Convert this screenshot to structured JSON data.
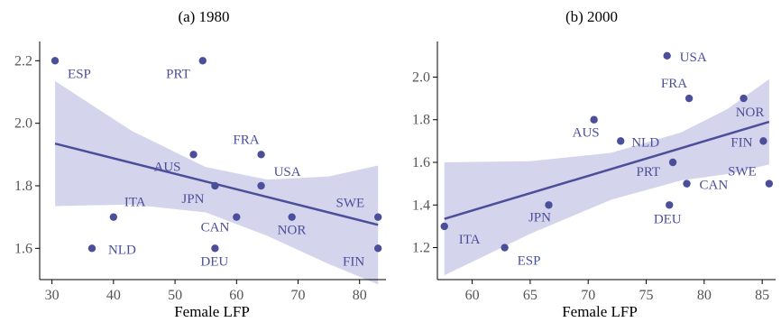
{
  "colors": {
    "point": "#4b4f9a",
    "line": "#4b4f9a",
    "band": "#d4d4ec",
    "label": "#4b4f9a",
    "axis": "#000000",
    "tick_label": "#555555"
  },
  "chart_data": [
    {
      "type": "scatter",
      "title": "(a) 1980",
      "xlabel": "Female LFP",
      "ylabel": "",
      "xlim": [
        28,
        84
      ],
      "ylim": [
        1.5,
        2.25
      ],
      "xticks": [
        30,
        40,
        50,
        60,
        70,
        80
      ],
      "yticks": [
        1.6,
        1.8,
        2.0,
        2.2
      ],
      "ytick_labels": [
        "1.6",
        "1.8",
        "2.0",
        "2.2"
      ],
      "grid": false,
      "points": [
        {
          "label": "ESP",
          "x": 30.5,
          "y": 2.2
        },
        {
          "label": "PRT",
          "x": 54.5,
          "y": 2.2
        },
        {
          "label": "FRA",
          "x": 64.0,
          "y": 1.9
        },
        {
          "label": "AUS",
          "x": 53.0,
          "y": 1.9
        },
        {
          "label": "JPN",
          "x": 56.5,
          "y": 1.8
        },
        {
          "label": "USA",
          "x": 64.0,
          "y": 1.8
        },
        {
          "label": "ITA",
          "x": 40.0,
          "y": 1.7
        },
        {
          "label": "CAN",
          "x": 60.0,
          "y": 1.7
        },
        {
          "label": "NOR",
          "x": 69.0,
          "y": 1.7
        },
        {
          "label": "SWE",
          "x": 83.0,
          "y": 1.7
        },
        {
          "label": "NLD",
          "x": 36.5,
          "y": 1.6
        },
        {
          "label": "DEU",
          "x": 56.5,
          "y": 1.6
        },
        {
          "label": "FIN",
          "x": 83.0,
          "y": 1.6
        }
      ],
      "fit": {
        "x": [
          30.5,
          83.0
        ],
        "y": [
          1.935,
          1.675
        ]
      },
      "band": {
        "x": [
          30.5,
          43,
          55,
          65,
          75,
          83.0
        ],
        "upper": [
          2.135,
          1.975,
          1.86,
          1.82,
          1.83,
          1.865
        ],
        "lower": [
          1.735,
          1.74,
          1.715,
          1.64,
          1.55,
          1.485
        ]
      }
    },
    {
      "type": "scatter",
      "title": "(b) 2000",
      "xlabel": "Female LFP",
      "ylabel": "",
      "xlim": [
        57,
        86
      ],
      "ylim": [
        1.05,
        2.15
      ],
      "xticks": [
        60,
        65,
        70,
        75,
        80,
        85
      ],
      "yticks": [
        1.2,
        1.4,
        1.6,
        1.8,
        2.0
      ],
      "ytick_labels": [
        "1.2",
        "1.4",
        "1.6",
        "1.8",
        "2.0"
      ],
      "grid": false,
      "points": [
        {
          "label": "USA",
          "x": 76.8,
          "y": 2.1
        },
        {
          "label": "FRA",
          "x": 78.7,
          "y": 1.9
        },
        {
          "label": "NOR",
          "x": 83.4,
          "y": 1.9
        },
        {
          "label": "AUS",
          "x": 70.5,
          "y": 1.8
        },
        {
          "label": "NLD",
          "x": 72.8,
          "y": 1.7
        },
        {
          "label": "FIN",
          "x": 85.1,
          "y": 1.7
        },
        {
          "label": "PRT",
          "x": 77.3,
          "y": 1.6
        },
        {
          "label": "SWE",
          "x": 85.6,
          "y": 1.5
        },
        {
          "label": "CAN",
          "x": 78.5,
          "y": 1.5
        },
        {
          "label": "JPN",
          "x": 66.6,
          "y": 1.4
        },
        {
          "label": "DEU",
          "x": 77.0,
          "y": 1.4
        },
        {
          "label": "ITA",
          "x": 57.6,
          "y": 1.3
        },
        {
          "label": "ESP",
          "x": 62.8,
          "y": 1.2
        }
      ],
      "fit": {
        "x": [
          57.6,
          85.6
        ],
        "y": [
          1.335,
          1.79
        ]
      },
      "band": {
        "x": [
          57.6,
          65,
          72,
          78,
          82,
          85.6
        ],
        "upper": [
          1.6,
          1.605,
          1.645,
          1.74,
          1.85,
          1.99
        ],
        "lower": [
          1.07,
          1.265,
          1.425,
          1.515,
          1.545,
          1.59
        ]
      }
    }
  ]
}
